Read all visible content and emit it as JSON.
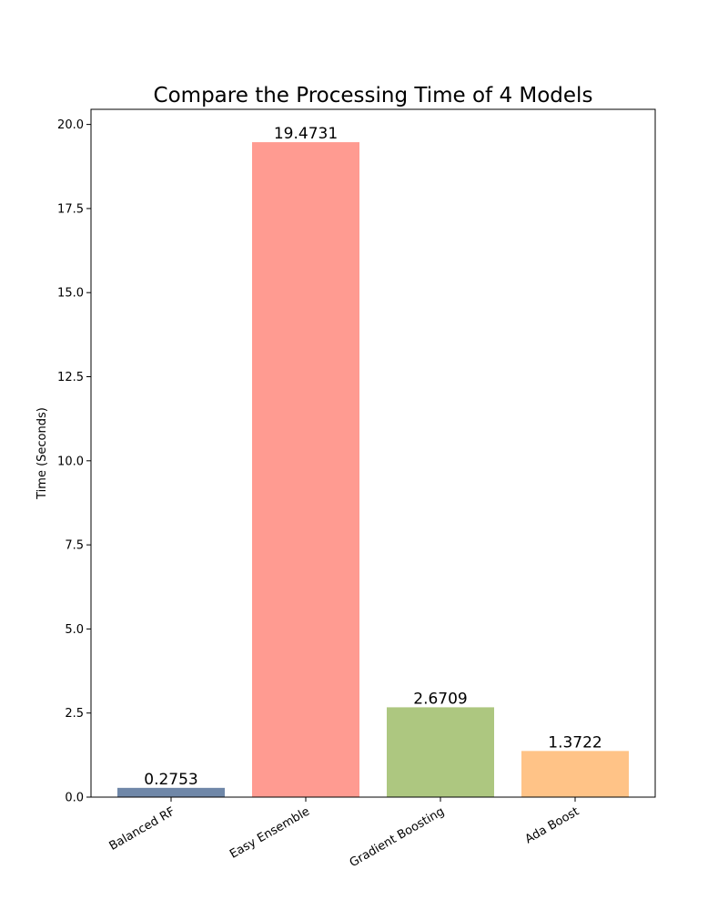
{
  "chart_data": {
    "type": "bar",
    "title": "Compare the Processing Time of 4 Models",
    "xlabel": "",
    "ylabel": "Time (Seconds)",
    "categories": [
      "Balanced RF",
      "Easy Ensemble",
      "Gradient Boosting",
      "Ada Boost"
    ],
    "values": [
      0.2753,
      19.4731,
      2.6709,
      1.3722
    ],
    "value_labels": [
      "0.2753",
      "19.4731",
      "2.6709",
      "1.3722"
    ],
    "colors": [
      "#6f87a8",
      "#ff9b91",
      "#adc780",
      "#ffc387"
    ],
    "ylim": [
      0,
      20.45
    ],
    "yticks": [
      0.0,
      2.5,
      5.0,
      7.5,
      10.0,
      12.5,
      15.0,
      17.5,
      20.0
    ],
    "ytick_labels": [
      "0.0",
      "2.5",
      "5.0",
      "7.5",
      "10.0",
      "12.5",
      "15.0",
      "17.5",
      "20.0"
    ],
    "xtick_rotation": -30,
    "grid": false,
    "legend": "none"
  }
}
